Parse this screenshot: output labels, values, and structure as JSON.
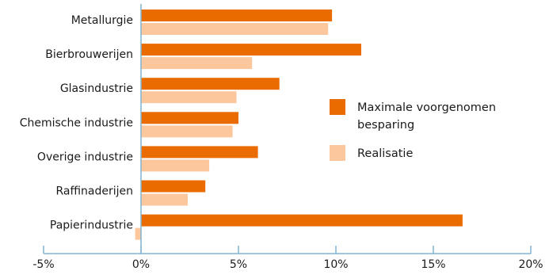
{
  "chart_data": {
    "type": "bar",
    "orientation": "horizontal",
    "categories": [
      "Metallurgie",
      "Bierbrouwerijen",
      "Glasindustrie",
      "Chemische industrie",
      "Overige industrie",
      "Raffinaderijen",
      "Papierindustrie"
    ],
    "series": [
      {
        "name": "Maximale voorgenomen besparing",
        "legend_lines": [
          "Maximale voorgenomen",
          "besparing"
        ],
        "color": "#ea6c00",
        "values": [
          9.8,
          11.3,
          7.1,
          5.0,
          6.0,
          3.3,
          16.5
        ]
      },
      {
        "name": "Realisatie",
        "legend_lines": [
          "Realisatie"
        ],
        "color": "#fcc79c",
        "values": [
          9.6,
          5.7,
          4.9,
          4.7,
          3.5,
          2.4,
          -0.3
        ]
      }
    ],
    "xlim": [
      -5,
      20
    ],
    "xticks": [
      {
        "value": -5,
        "label": "-5%"
      },
      {
        "value": 0,
        "label": "0%"
      },
      {
        "value": 5,
        "label": "5%"
      },
      {
        "value": 10,
        "label": "10%"
      },
      {
        "value": 15,
        "label": "15%"
      },
      {
        "value": 20,
        "label": "20%"
      }
    ],
    "axis_color": "#82b4d0",
    "grid": false,
    "legend_position": "right"
  }
}
